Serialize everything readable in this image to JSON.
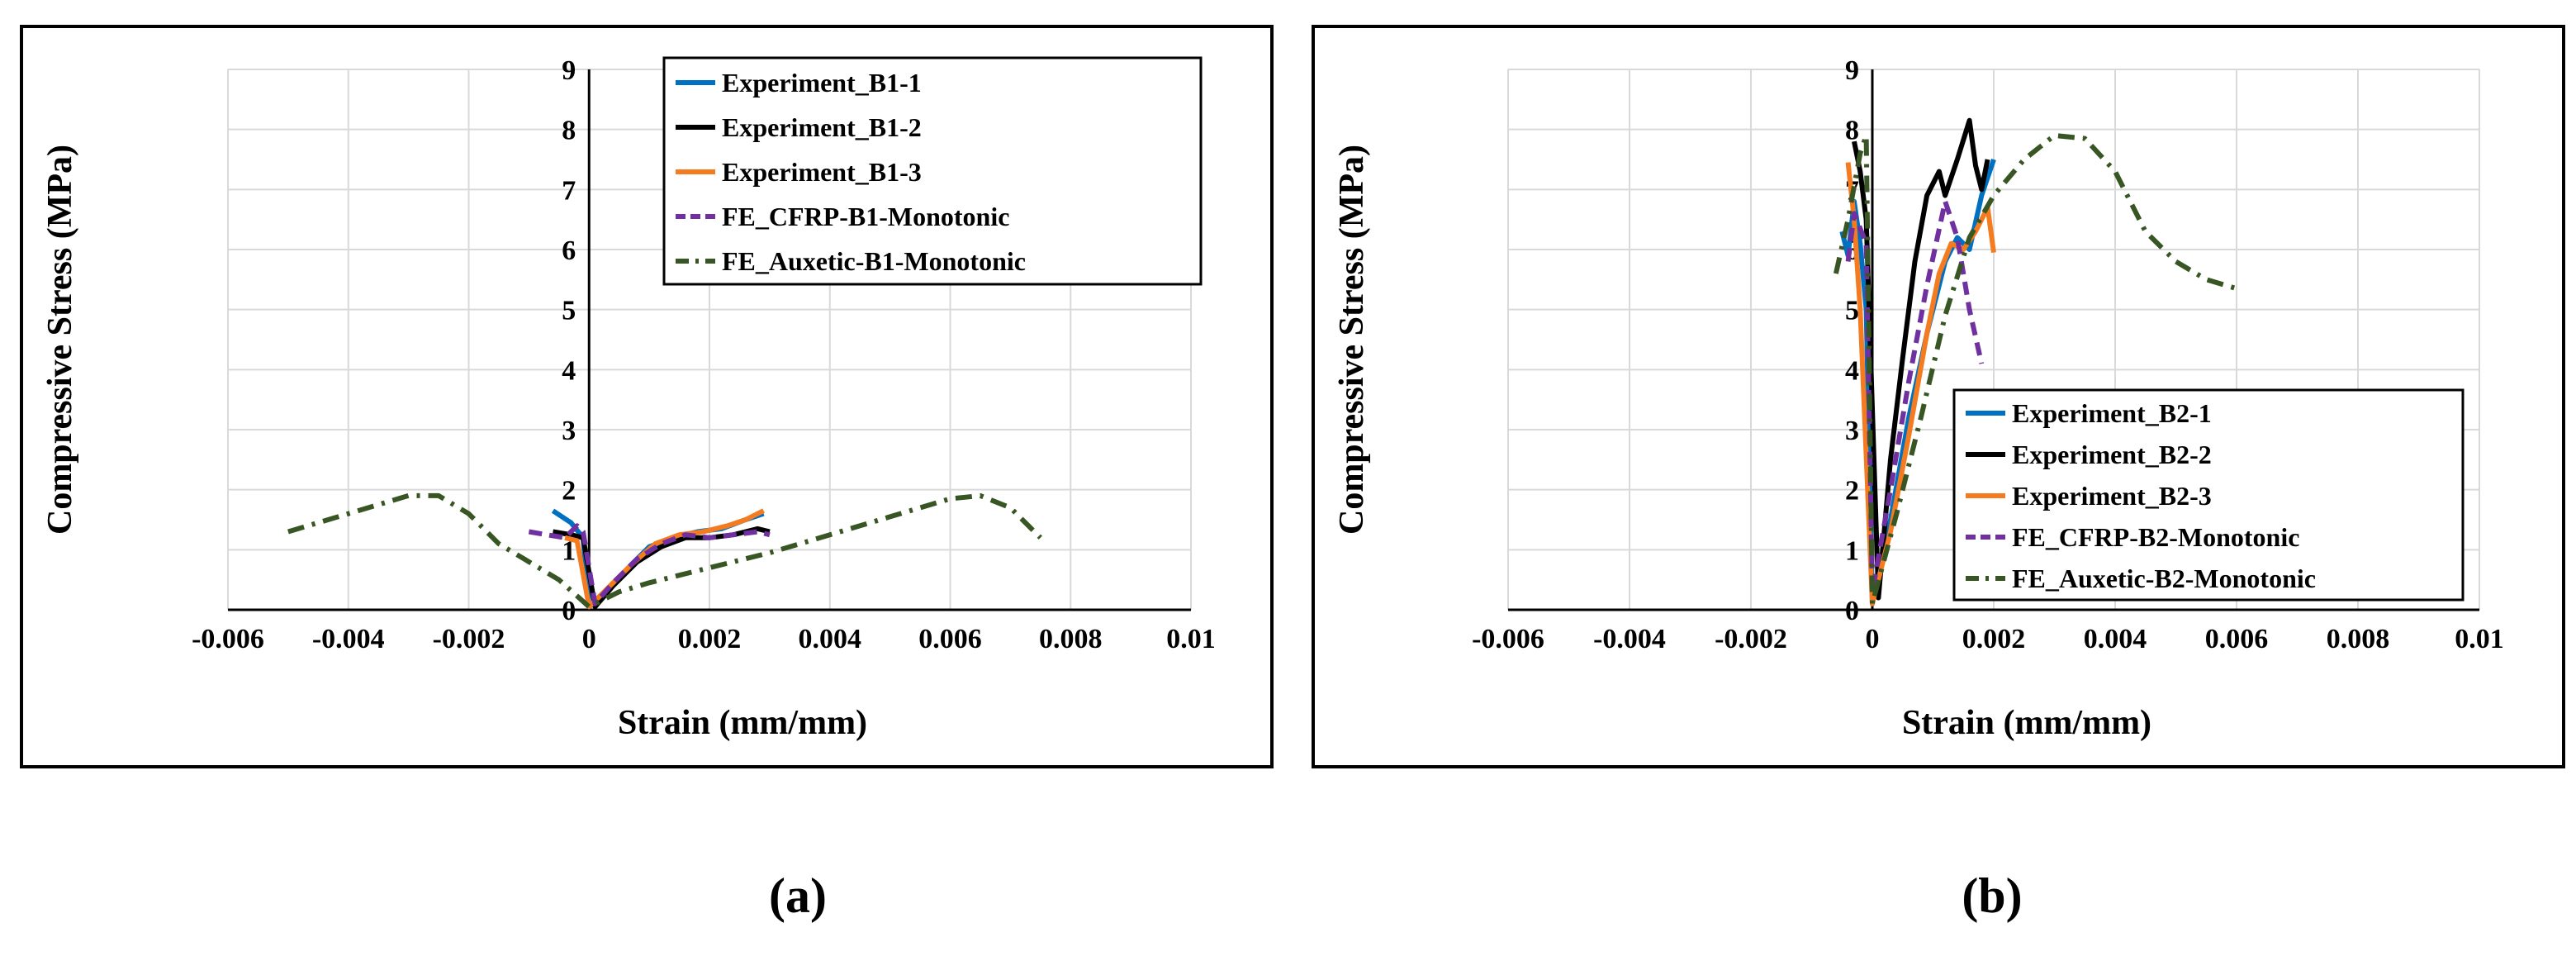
{
  "chart_data": [
    {
      "type": "line",
      "panel_label": "(a)",
      "xlabel": "Strain (mm/mm)",
      "ylabel": "Compressive Stress (MPa)",
      "xlim": [
        -0.006,
        0.01
      ],
      "ylim": [
        0,
        9
      ],
      "x_ticks": [
        -0.006,
        -0.004,
        -0.002,
        0,
        0.002,
        0.004,
        0.006,
        0.008,
        0.01
      ],
      "x_tick_labels": [
        "-0.006",
        "-0.004",
        "-0.002",
        "0",
        "0.002",
        "0.004",
        "0.006",
        "0.008",
        "0.01"
      ],
      "y_ticks": [
        0,
        1,
        2,
        3,
        4,
        5,
        6,
        7,
        8,
        9
      ],
      "y_tick_labels": [
        "0",
        "1",
        "2",
        "3",
        "4",
        "5",
        "6",
        "7",
        "8",
        "9"
      ],
      "grid": true,
      "legend_position": "top-right",
      "series": [
        {
          "name": "Experiment_B1-1",
          "color": "#0070C0",
          "dash": "solid",
          "points": [
            [
              -0.0006,
              1.65
            ],
            [
              -0.0003,
              1.45
            ],
            [
              -0.0001,
              1.2
            ],
            [
              0,
              0.05
            ],
            [
              0.0003,
              0.3
            ],
            [
              0.0007,
              0.75
            ],
            [
              0.001,
              1.05
            ],
            [
              0.0014,
              1.2
            ],
            [
              0.0018,
              1.3
            ],
            [
              0.0022,
              1.35
            ],
            [
              0.0026,
              1.5
            ],
            [
              0.0029,
              1.6
            ]
          ]
        },
        {
          "name": "Experiment_B1-2",
          "color": "#000000",
          "dash": "solid",
          "points": [
            [
              -0.0006,
              1.3
            ],
            [
              -0.0003,
              1.25
            ],
            [
              -0.0001,
              1.2
            ],
            [
              0.0001,
              0.05
            ],
            [
              0.0004,
              0.4
            ],
            [
              0.0008,
              0.8
            ],
            [
              0.0012,
              1.05
            ],
            [
              0.0016,
              1.2
            ],
            [
              0.002,
              1.2
            ],
            [
              0.0024,
              1.25
            ],
            [
              0.0028,
              1.35
            ],
            [
              0.003,
              1.3
            ]
          ]
        },
        {
          "name": "Experiment_B1-3",
          "color": "#F47B20",
          "dash": "solid",
          "points": [
            [
              -0.0004,
              1.2
            ],
            [
              -0.0002,
              1.15
            ],
            [
              0,
              0.05
            ],
            [
              0.0003,
              0.35
            ],
            [
              0.0007,
              0.75
            ],
            [
              0.0011,
              1.1
            ],
            [
              0.0015,
              1.25
            ],
            [
              0.0019,
              1.3
            ],
            [
              0.0023,
              1.4
            ],
            [
              0.0026,
              1.5
            ],
            [
              0.0029,
              1.65
            ]
          ]
        },
        {
          "name": "FE_CFRP-B1-Monotonic",
          "color": "#7030A0",
          "dash": "dash",
          "points": [
            [
              -0.001,
              1.3
            ],
            [
              -0.0007,
              1.25
            ],
            [
              -0.0004,
              1.2
            ],
            [
              -0.0002,
              1.4
            ],
            [
              -0.0001,
              1.3
            ],
            [
              0.0001,
              0.1
            ],
            [
              0.0004,
              0.45
            ],
            [
              0.0008,
              0.85
            ],
            [
              0.0012,
              1.1
            ],
            [
              0.0016,
              1.25
            ],
            [
              0.002,
              1.2
            ],
            [
              0.0024,
              1.25
            ],
            [
              0.0028,
              1.3
            ],
            [
              0.003,
              1.25
            ]
          ]
        },
        {
          "name": "FE_Auxetic-B1-Monotonic",
          "color": "#375623",
          "dash": "dashdot",
          "points": [
            [
              -0.005,
              1.3
            ],
            [
              -0.004,
              1.6
            ],
            [
              -0.003,
              1.9
            ],
            [
              -0.0025,
              1.9
            ],
            [
              -0.002,
              1.6
            ],
            [
              -0.0015,
              1.1
            ],
            [
              -0.001,
              0.8
            ],
            [
              -0.0005,
              0.5
            ],
            [
              0,
              0.05
            ],
            [
              0.0005,
              0.3
            ],
            [
              0.001,
              0.45
            ],
            [
              0.002,
              0.7
            ],
            [
              0.003,
              0.95
            ],
            [
              0.004,
              1.25
            ],
            [
              0.005,
              1.55
            ],
            [
              0.006,
              1.85
            ],
            [
              0.0065,
              1.9
            ],
            [
              0.007,
              1.7
            ],
            [
              0.0075,
              1.2
            ]
          ]
        }
      ]
    },
    {
      "type": "line",
      "panel_label": "(b)",
      "xlabel": "Strain (mm/mm)",
      "ylabel": "Compressive Stress (MPa)",
      "xlim": [
        -0.006,
        0.01
      ],
      "ylim": [
        0,
        9
      ],
      "x_ticks": [
        -0.006,
        -0.004,
        -0.002,
        0,
        0.002,
        0.004,
        0.006,
        0.008,
        0.01
      ],
      "x_tick_labels": [
        "-0.006",
        "-0.004",
        "-0.002",
        "0",
        "0.002",
        "0.004",
        "0.006",
        "0.008",
        "0.01"
      ],
      "y_ticks": [
        0,
        1,
        2,
        3,
        4,
        5,
        6,
        7,
        8,
        9
      ],
      "y_tick_labels": [
        "0",
        "1",
        "2",
        "3",
        "4",
        "5",
        "6",
        "7",
        "8",
        "9"
      ],
      "grid": true,
      "legend_position": "lower-right",
      "series": [
        {
          "name": "Experiment_B2-1",
          "color": "#0070C0",
          "dash": "solid",
          "points": [
            [
              -0.0005,
              6.3
            ],
            [
              -0.0004,
              5.9
            ],
            [
              -0.0003,
              6.8
            ],
            [
              -0.0002,
              6.1
            ],
            [
              -0.0001,
              5.0
            ],
            [
              0,
              0.1
            ],
            [
              0.0003,
              1.5
            ],
            [
              0.0006,
              3.2
            ],
            [
              0.0009,
              4.6
            ],
            [
              0.0012,
              5.8
            ],
            [
              0.0014,
              6.2
            ],
            [
              0.0016,
              6.0
            ],
            [
              0.0018,
              6.9
            ],
            [
              0.002,
              7.5
            ]
          ]
        },
        {
          "name": "Experiment_B2-2",
          "color": "#000000",
          "dash": "solid",
          "points": [
            [
              -0.0003,
              7.8
            ],
            [
              -0.0002,
              7.3
            ],
            [
              -0.0001,
              6.5
            ],
            [
              0.0001,
              0.2
            ],
            [
              0.0003,
              2.5
            ],
            [
              0.0005,
              4.2
            ],
            [
              0.0007,
              5.8
            ],
            [
              0.0009,
              6.9
            ],
            [
              0.0011,
              7.3
            ],
            [
              0.0012,
              6.9
            ],
            [
              0.0014,
              7.5
            ],
            [
              0.0016,
              8.15
            ],
            [
              0.0017,
              7.4
            ],
            [
              0.0018,
              7.0
            ],
            [
              0.0019,
              7.5
            ]
          ]
        },
        {
          "name": "Experiment_B2-3",
          "color": "#F47B20",
          "dash": "solid",
          "points": [
            [
              -0.0004,
              7.45
            ],
            [
              -0.0003,
              6.5
            ],
            [
              -0.0002,
              5.0
            ],
            [
              0,
              0.1
            ],
            [
              0.0003,
              1.3
            ],
            [
              0.0006,
              2.9
            ],
            [
              0.0009,
              4.6
            ],
            [
              0.0011,
              5.6
            ],
            [
              0.0013,
              6.1
            ],
            [
              0.0015,
              6.0
            ],
            [
              0.0017,
              6.3
            ],
            [
              0.0019,
              6.7
            ],
            [
              0.002,
              5.95
            ]
          ]
        },
        {
          "name": "FE_CFRP-B2-Monotonic",
          "color": "#7030A0",
          "dash": "dash",
          "points": [
            [
              -0.0004,
              5.8
            ],
            [
              -0.0003,
              6.6
            ],
            [
              -0.0001,
              6.1
            ],
            [
              0,
              0.3
            ],
            [
              0.0003,
              2.0
            ],
            [
              0.0006,
              3.8
            ],
            [
              0.0009,
              5.4
            ],
            [
              0.0012,
              6.8
            ],
            [
              0.0014,
              6.2
            ],
            [
              0.0016,
              5.0
            ],
            [
              0.0018,
              4.1
            ]
          ]
        },
        {
          "name": "FE_Auxetic-B2-Monotonic",
          "color": "#375623",
          "dash": "dashdot",
          "points": [
            [
              -0.0006,
              5.6
            ],
            [
              -0.0004,
              6.5
            ],
            [
              -0.0002,
              7.6
            ],
            [
              -0.0001,
              7.9
            ],
            [
              0,
              0.1
            ],
            [
              0.0004,
              1.6
            ],
            [
              0.0008,
              3.2
            ],
            [
              0.0012,
              4.9
            ],
            [
              0.0016,
              6.2
            ],
            [
              0.002,
              6.9
            ],
            [
              0.0025,
              7.5
            ],
            [
              0.003,
              7.9
            ],
            [
              0.0035,
              7.85
            ],
            [
              0.004,
              7.3
            ],
            [
              0.0045,
              6.3
            ],
            [
              0.005,
              5.8
            ],
            [
              0.0055,
              5.5
            ],
            [
              0.006,
              5.35
            ]
          ]
        }
      ]
    }
  ]
}
